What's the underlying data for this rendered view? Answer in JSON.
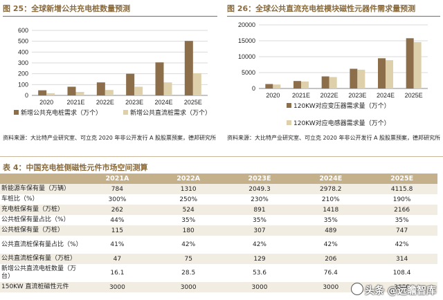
{
  "fig25": {
    "title": "图 25：全球新增公共充电桩数量预测",
    "source": "资料来源：大比特产业研究室、可立克 2020 年非公开发行 A 股股票预案，德邦研究所",
    "chart_data": {
      "type": "bar",
      "categories": [
        "2020",
        "2021E",
        "2022E",
        "2023E",
        "2024E",
        "2025E"
      ],
      "ylim": [
        0,
        600
      ],
      "yticks": [
        "0",
        "100",
        "200",
        "300",
        "400",
        "500",
        "600"
      ],
      "series": [
        {
          "name": "新增公共充电桩需求（万个）",
          "color": "#8c6e4a",
          "values": [
            47,
            80,
            120,
            200,
            305,
            503
          ]
        },
        {
          "name": "新增公共直流桩需求（万个）",
          "color": "#ddd0aa",
          "values": [
            20,
            32,
            50,
            80,
            120,
            205
          ]
        }
      ],
      "legend": "bottom"
    }
  },
  "fig26": {
    "title": "图 26：全球公共直流充电桩模块磁性元器件需求量预测",
    "source": "资料来源：大比特产业研究室、可立克 2020 年非公开发行 A 股股票预案，德邦研究所",
    "chart_data": {
      "type": "bar",
      "categories": [
        "2020",
        "2021E",
        "2022E",
        "2023E",
        "2024E",
        "2025E"
      ],
      "ylim": [
        0,
        20000
      ],
      "yticks": [
        "0",
        "5000",
        "10000",
        "15000",
        "20000"
      ],
      "series": [
        {
          "name": "120KW对应变压器需求量（万个）",
          "color": "#8c6e4a",
          "values": [
            1400,
            2350,
            3800,
            6200,
            9500,
            15800
          ]
        },
        {
          "name": "120KW对应电感器需求量（万个）",
          "color": "#ddd0aa",
          "values": [
            1250,
            2200,
            3600,
            5900,
            8900,
            14600
          ]
        }
      ],
      "legend": "bottom"
    }
  },
  "table4": {
    "title": "表 4：中国充电桩侧磁性元件市场空间测算",
    "headers": [
      "",
      "2021A",
      "2022A",
      "2023E",
      "2024E",
      "2025E"
    ],
    "rows": [
      {
        "label": "新能源车保有量（万辆）",
        "values": [
          "784",
          "1310",
          "2049.3",
          "2978.2",
          "4115.8"
        ]
      },
      {
        "label": "车桩比（%）",
        "values": [
          "300%",
          "250%",
          "230%",
          "210%",
          "190%"
        ]
      },
      {
        "label": "充电桩保有量（万桩）",
        "values": [
          "262",
          "524",
          "891",
          "1418",
          "2166"
        ]
      },
      {
        "label": "公共桩保有量占比（%）",
        "values": [
          "44%",
          "35%",
          "35%",
          "35%",
          "35%"
        ]
      },
      {
        "label": "公共桩保有量（万桩）",
        "values": [
          "115",
          "180",
          "307",
          "489",
          "747"
        ]
      },
      {
        "label": "公共直流桩保有量占比（%）",
        "values": [
          "41%",
          "42%",
          "42%",
          "42%",
          "42%"
        ]
      },
      {
        "label": "公共直流桩保有量（万桩）",
        "values": [
          "47",
          "75",
          "129",
          "206",
          "314"
        ]
      },
      {
        "label": "新增公共直流电桩数量（万台）",
        "values": [
          "16.1",
          "28.5",
          "53.6",
          "76.4",
          "108.4"
        ]
      },
      {
        "label": "150KW 直流桩磁性元件",
        "values": [
          "3000",
          "3000",
          "3000",
          "3000",
          "3000"
        ]
      }
    ]
  },
  "watermark": "头条 @远瞻智库"
}
